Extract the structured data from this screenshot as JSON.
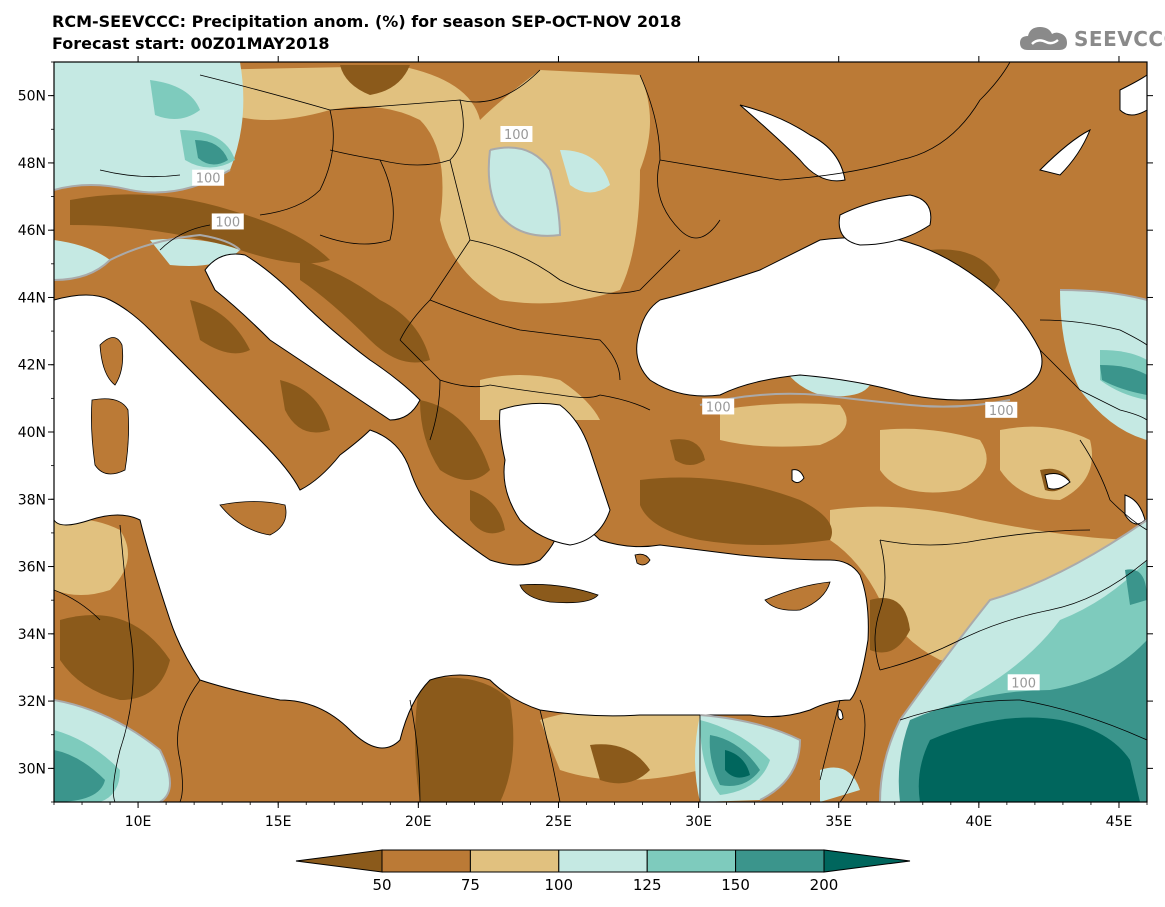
{
  "title": {
    "line1": "RCM-SEEVCCC: Precipitation anom. (%) for season SEP-OCT-NOV 2018",
    "line2": "Forecast start: 00Z01MAY2018"
  },
  "logo": {
    "text": "SEEVCCC",
    "icon": "cloud-icon"
  },
  "map": {
    "lon_range": [
      7,
      46
    ],
    "lat_range": [
      29,
      51
    ],
    "lat_ticks": [
      {
        "value": 50,
        "label": "50N"
      },
      {
        "value": 48,
        "label": "48N"
      },
      {
        "value": 46,
        "label": "46N"
      },
      {
        "value": 44,
        "label": "44N"
      },
      {
        "value": 42,
        "label": "42N"
      },
      {
        "value": 40,
        "label": "40N"
      },
      {
        "value": 38,
        "label": "38N"
      },
      {
        "value": 36,
        "label": "36N"
      },
      {
        "value": 34,
        "label": "34N"
      },
      {
        "value": 32,
        "label": "32N"
      },
      {
        "value": 30,
        "label": "30N"
      }
    ],
    "lon_ticks": [
      {
        "value": 10,
        "label": "10E"
      },
      {
        "value": 15,
        "label": "15E"
      },
      {
        "value": 20,
        "label": "20E"
      },
      {
        "value": 25,
        "label": "25E"
      },
      {
        "value": 30,
        "label": "30E"
      },
      {
        "value": 35,
        "label": "35E"
      },
      {
        "value": 40,
        "label": "40E"
      },
      {
        "value": 45,
        "label": "45E"
      }
    ],
    "contour_labels": [
      {
        "text": "100",
        "lon": 23.5,
        "lat": 48.8
      },
      {
        "text": "100",
        "lon": 12.5,
        "lat": 47.5
      },
      {
        "text": "100",
        "lon": 13.2,
        "lat": 46.2
      },
      {
        "text": "100",
        "lon": 30.7,
        "lat": 40.7
      },
      {
        "text": "100",
        "lon": 40.8,
        "lat": 40.6
      },
      {
        "text": "100",
        "lon": 41.6,
        "lat": 32.5
      }
    ]
  },
  "colorbar": {
    "levels": [
      "50",
      "75",
      "100",
      "125",
      "150",
      "200"
    ],
    "colors": [
      "#8b5a1b",
      "#bb7a36",
      "#e1c17f",
      "#c5e9e3",
      "#7ecbbd",
      "#3b958c",
      "#00665d"
    ]
  }
}
